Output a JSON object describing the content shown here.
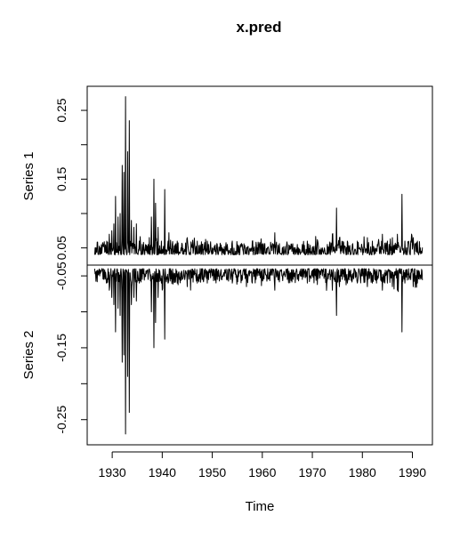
{
  "chart_data": {
    "type": "line",
    "title": "x.pred",
    "xlabel": "Time",
    "xlim": [
      1925,
      1994
    ],
    "x_ticks": [
      1930,
      1940,
      1950,
      1960,
      1970,
      1980,
      1990
    ],
    "x_start": 1926.5,
    "x_end": 1992.0,
    "panels": [
      {
        "name": "Series 1",
        "ylim": [
          0.025,
          0.285
        ],
        "y_ticks": [
          {
            "value": 0.25,
            "label": "0.25"
          },
          {
            "value": 0.15,
            "label": "0.15"
          },
          {
            "value": 0.05,
            "label": "0.05"
          }
        ],
        "baseline": 0.04,
        "spikes": [
          [
            1926.8,
            0.045
          ],
          [
            1927.5,
            0.05
          ],
          [
            1928.3,
            0.055
          ],
          [
            1928.9,
            0.06
          ],
          [
            1929.4,
            0.07
          ],
          [
            1929.9,
            0.075
          ],
          [
            1930.3,
            0.085
          ],
          [
            1930.7,
            0.125
          ],
          [
            1931.2,
            0.095
          ],
          [
            1931.6,
            0.1
          ],
          [
            1932.0,
            0.17
          ],
          [
            1932.3,
            0.16
          ],
          [
            1932.7,
            0.27
          ],
          [
            1933.1,
            0.19
          ],
          [
            1933.4,
            0.235
          ],
          [
            1933.8,
            0.09
          ],
          [
            1934.3,
            0.08
          ],
          [
            1934.8,
            0.085
          ],
          [
            1935.4,
            0.06
          ],
          [
            1936.0,
            0.055
          ],
          [
            1936.6,
            0.05
          ],
          [
            1937.2,
            0.055
          ],
          [
            1937.8,
            0.095
          ],
          [
            1938.3,
            0.15
          ],
          [
            1938.7,
            0.115
          ],
          [
            1939.2,
            0.08
          ],
          [
            1939.8,
            0.06
          ],
          [
            1940.5,
            0.135
          ],
          [
            1941.2,
            0.06
          ],
          [
            1942.0,
            0.055
          ],
          [
            1943.0,
            0.06
          ],
          [
            1944.0,
            0.055
          ],
          [
            1945.0,
            0.065
          ],
          [
            1946.0,
            0.05
          ],
          [
            1947.0,
            0.06
          ],
          [
            1948.0,
            0.055
          ],
          [
            1949.0,
            0.06
          ],
          [
            1950.0,
            0.05
          ],
          [
            1951.0,
            0.055
          ],
          [
            1952.0,
            0.05
          ],
          [
            1953.0,
            0.055
          ],
          [
            1954.0,
            0.06
          ],
          [
            1955.0,
            0.05
          ],
          [
            1956.0,
            0.055
          ],
          [
            1957.0,
            0.05
          ],
          [
            1958.0,
            0.06
          ],
          [
            1959.0,
            0.05
          ],
          [
            1960.0,
            0.055
          ],
          [
            1961.0,
            0.05
          ],
          [
            1962.5,
            0.072
          ],
          [
            1964.0,
            0.05
          ],
          [
            1965.0,
            0.055
          ],
          [
            1966.0,
            0.05
          ],
          [
            1967.0,
            0.055
          ],
          [
            1968.0,
            0.055
          ],
          [
            1969.0,
            0.06
          ],
          [
            1970.0,
            0.05
          ],
          [
            1971.0,
            0.062
          ],
          [
            1972.0,
            0.05
          ],
          [
            1973.0,
            0.055
          ],
          [
            1974.0,
            0.07
          ],
          [
            1974.8,
            0.108
          ],
          [
            1975.4,
            0.065
          ],
          [
            1976.0,
            0.055
          ],
          [
            1977.0,
            0.06
          ],
          [
            1978.0,
            0.055
          ],
          [
            1979.0,
            0.06
          ],
          [
            1980.0,
            0.05
          ],
          [
            1981.0,
            0.065
          ],
          [
            1982.0,
            0.06
          ],
          [
            1983.0,
            0.055
          ],
          [
            1984.0,
            0.07
          ],
          [
            1985.0,
            0.06
          ],
          [
            1986.0,
            0.065
          ],
          [
            1987.0,
            0.07
          ],
          [
            1987.9,
            0.128
          ],
          [
            1988.5,
            0.06
          ],
          [
            1989.3,
            0.055
          ],
          [
            1990.2,
            0.065
          ],
          [
            1991.0,
            0.06
          ],
          [
            1991.6,
            0.05
          ]
        ]
      },
      {
        "name": "Series 2",
        "ylim": [
          -0.285,
          -0.035
        ],
        "y_ticks": [
          {
            "value": -0.05,
            "label": "-0.05"
          },
          {
            "value": -0.15,
            "label": "-0.15"
          },
          {
            "value": -0.25,
            "label": "-0.25"
          }
        ],
        "baseline": -0.04,
        "spikes": [
          [
            1926.8,
            -0.045
          ],
          [
            1927.5,
            -0.05
          ],
          [
            1928.3,
            -0.055
          ],
          [
            1928.9,
            -0.06
          ],
          [
            1929.4,
            -0.07
          ],
          [
            1929.9,
            -0.08
          ],
          [
            1930.3,
            -0.09
          ],
          [
            1930.7,
            -0.128
          ],
          [
            1931.2,
            -0.095
          ],
          [
            1931.6,
            -0.105
          ],
          [
            1932.0,
            -0.17
          ],
          [
            1932.3,
            -0.16
          ],
          [
            1932.7,
            -0.27
          ],
          [
            1933.1,
            -0.19
          ],
          [
            1933.4,
            -0.24
          ],
          [
            1933.8,
            -0.09
          ],
          [
            1934.3,
            -0.08
          ],
          [
            1934.8,
            -0.085
          ],
          [
            1935.4,
            -0.06
          ],
          [
            1936.0,
            -0.055
          ],
          [
            1936.6,
            -0.05
          ],
          [
            1937.2,
            -0.055
          ],
          [
            1937.8,
            -0.1
          ],
          [
            1938.3,
            -0.15
          ],
          [
            1938.7,
            -0.115
          ],
          [
            1939.2,
            -0.08
          ],
          [
            1939.8,
            -0.06
          ],
          [
            1940.5,
            -0.138
          ],
          [
            1941.2,
            -0.06
          ],
          [
            1942.0,
            -0.055
          ],
          [
            1943.0,
            -0.06
          ],
          [
            1944.0,
            -0.055
          ],
          [
            1945.0,
            -0.065
          ],
          [
            1946.0,
            -0.05
          ],
          [
            1947.0,
            -0.06
          ],
          [
            1948.0,
            -0.055
          ],
          [
            1949.0,
            -0.06
          ],
          [
            1950.0,
            -0.05
          ],
          [
            1951.0,
            -0.055
          ],
          [
            1952.0,
            -0.05
          ],
          [
            1953.0,
            -0.055
          ],
          [
            1954.0,
            -0.06
          ],
          [
            1955.0,
            -0.05
          ],
          [
            1956.0,
            -0.055
          ],
          [
            1957.0,
            -0.05
          ],
          [
            1958.0,
            -0.06
          ],
          [
            1959.0,
            -0.05
          ],
          [
            1960.0,
            -0.055
          ],
          [
            1961.0,
            -0.05
          ],
          [
            1962.5,
            -0.07
          ],
          [
            1964.0,
            -0.05
          ],
          [
            1965.0,
            -0.055
          ],
          [
            1966.0,
            -0.05
          ],
          [
            1967.0,
            -0.055
          ],
          [
            1968.0,
            -0.055
          ],
          [
            1969.0,
            -0.06
          ],
          [
            1970.0,
            -0.05
          ],
          [
            1971.0,
            -0.062
          ],
          [
            1972.0,
            -0.05
          ],
          [
            1973.0,
            -0.055
          ],
          [
            1974.0,
            -0.07
          ],
          [
            1974.8,
            -0.105
          ],
          [
            1975.4,
            -0.065
          ],
          [
            1976.0,
            -0.055
          ],
          [
            1977.0,
            -0.06
          ],
          [
            1978.0,
            -0.055
          ],
          [
            1979.0,
            -0.06
          ],
          [
            1980.0,
            -0.05
          ],
          [
            1981.0,
            -0.065
          ],
          [
            1982.0,
            -0.06
          ],
          [
            1983.0,
            -0.055
          ],
          [
            1984.0,
            -0.07
          ],
          [
            1985.0,
            -0.06
          ],
          [
            1986.0,
            -0.065
          ],
          [
            1987.0,
            -0.07
          ],
          [
            1987.9,
            -0.128
          ],
          [
            1988.5,
            -0.06
          ],
          [
            1989.3,
            -0.055
          ],
          [
            1990.2,
            -0.065
          ],
          [
            1991.0,
            -0.06
          ],
          [
            1991.6,
            -0.05
          ]
        ]
      }
    ]
  }
}
